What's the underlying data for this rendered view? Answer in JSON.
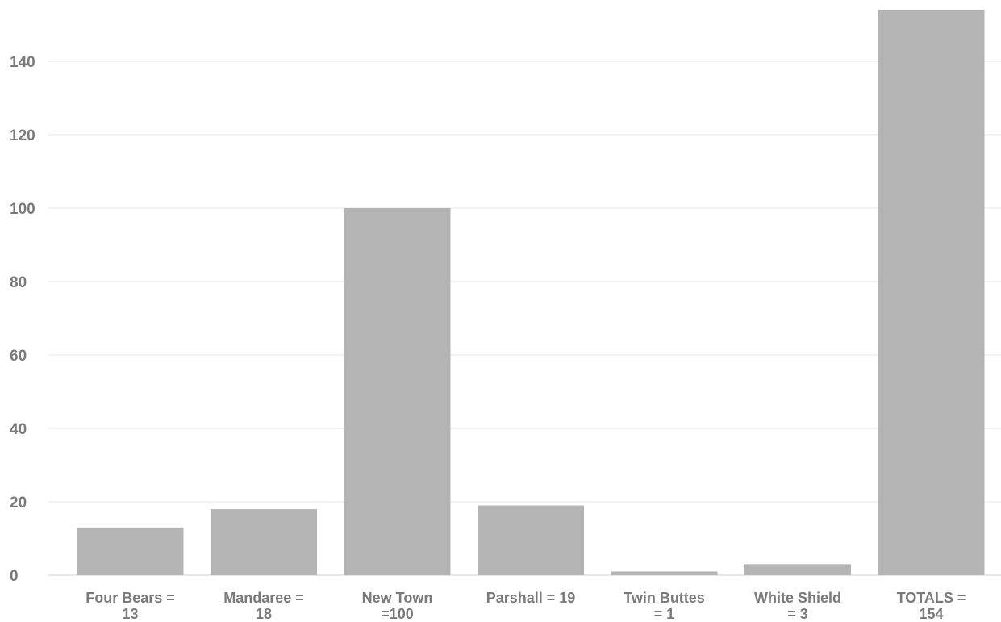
{
  "chart_data": {
    "type": "bar",
    "categories": [
      [
        "Four Bears =",
        "13"
      ],
      [
        "Mandaree =",
        "18"
      ],
      [
        "New Town",
        "=100"
      ],
      [
        "Parshall = 19"
      ],
      [
        "Twin Buttes",
        "= 1"
      ],
      [
        "White Shield",
        "= 3"
      ],
      [
        "TOTALS =",
        "154"
      ]
    ],
    "values": [
      13,
      18,
      100,
      19,
      1,
      3,
      154
    ],
    "ylim": [
      0,
      154
    ],
    "yticks": [
      0,
      20,
      40,
      60,
      80,
      100,
      120,
      140
    ],
    "grid": true,
    "colors": {
      "bar": "#b4b4b4",
      "grid": "#e6e6e6",
      "text": "#7a7a7a"
    }
  }
}
